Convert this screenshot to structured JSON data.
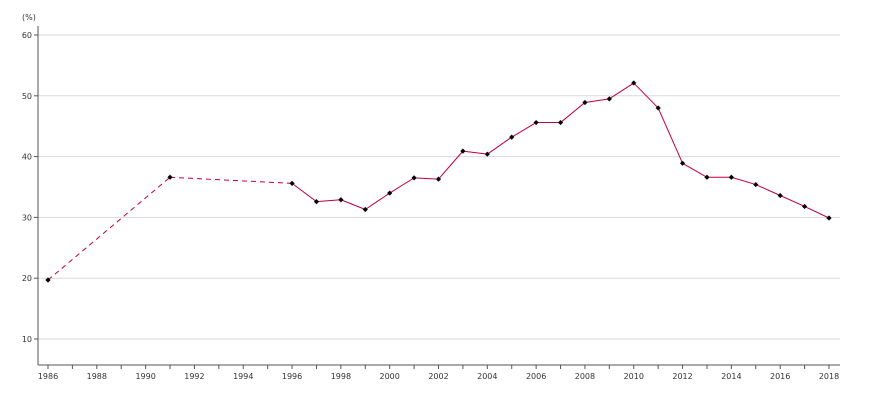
{
  "chart_data": {
    "type": "line",
    "unit_label": "(%)",
    "xlim": [
      1986,
      2018
    ],
    "ylim": [
      5,
      60
    ],
    "y_ticks": [
      10,
      20,
      30,
      40,
      50,
      60
    ],
    "x_ticks": [
      1986,
      1988,
      1990,
      1992,
      1994,
      1996,
      1998,
      2000,
      2002,
      2004,
      2006,
      2008,
      2010,
      2012,
      2014,
      2016,
      2018
    ],
    "grid": true,
    "legend": "none",
    "series": [
      {
        "color": "#c0003c",
        "marker_color": "#000000",
        "points": [
          {
            "x": 1986,
            "y": 19.7,
            "marker": true
          },
          {
            "x": 1991,
            "y": 36.6,
            "marker": true
          },
          {
            "x": 1996,
            "y": 35.6,
            "marker": true
          },
          {
            "x": 1997,
            "y": 32.6,
            "marker": true
          },
          {
            "x": 1998,
            "y": 32.9,
            "marker": true
          },
          {
            "x": 1999,
            "y": 31.3,
            "marker": true
          },
          {
            "x": 2000,
            "y": 34.0,
            "marker": true
          },
          {
            "x": 2001,
            "y": 36.5,
            "marker": true
          },
          {
            "x": 2002,
            "y": 36.3,
            "marker": true
          },
          {
            "x": 2003,
            "y": 40.9,
            "marker": true
          },
          {
            "x": 2004,
            "y": 40.4,
            "marker": true
          },
          {
            "x": 2005,
            "y": 43.2,
            "marker": true
          },
          {
            "x": 2006,
            "y": 45.6,
            "marker": true
          },
          {
            "x": 2007,
            "y": 45.6,
            "marker": true
          },
          {
            "x": 2008,
            "y": 48.9,
            "marker": true
          },
          {
            "x": 2009,
            "y": 49.5,
            "marker": true
          },
          {
            "x": 2010,
            "y": 52.1,
            "marker": true
          },
          {
            "x": 2011,
            "y": 48.0,
            "marker": true
          },
          {
            "x": 2012,
            "y": 38.9,
            "marker": true
          },
          {
            "x": 2013,
            "y": 36.6,
            "marker": true
          },
          {
            "x": 2014,
            "y": 36.6,
            "marker": true
          },
          {
            "x": 2015,
            "y": 35.4,
            "marker": true
          },
          {
            "x": 2016,
            "y": 33.6,
            "marker": true
          },
          {
            "x": 2017,
            "y": 31.8,
            "marker": true
          },
          {
            "x": 2018,
            "y": 29.9,
            "marker": true
          }
        ],
        "dashed_segments": [
          [
            1986,
            1991
          ],
          [
            1991,
            1996
          ]
        ]
      }
    ]
  }
}
